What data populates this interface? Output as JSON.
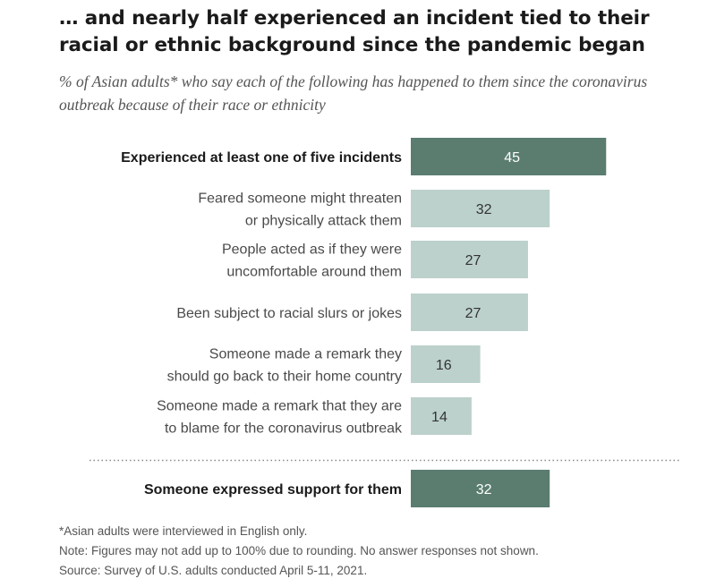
{
  "title": "… and nearly half experienced an incident tied to their racial or ethnic background since the pandemic began",
  "subtitle": "% of Asian adults* who say each of the following has happened to them since the coronavirus outbreak because of their race or ethnicity",
  "chart_data": {
    "type": "bar",
    "orientation": "horizontal",
    "categories": [
      [
        "Experienced at least one of five incidents"
      ],
      [
        "Feared someone might threaten",
        "or physically attack them"
      ],
      [
        "People acted as if they were",
        "uncomfortable around them"
      ],
      [
        "Been subject to racial slurs or jokes"
      ],
      [
        "Someone made a remark they",
        "should go back to their home country"
      ],
      [
        "Someone made a remark that they are",
        "to blame for the coronavirus outbreak"
      ],
      [
        "Someone expressed support for them"
      ]
    ],
    "values": [
      45,
      32,
      27,
      27,
      16,
      14,
      32
    ],
    "highlight": [
      true,
      false,
      false,
      false,
      false,
      false,
      true
    ],
    "separator_before_index": 6,
    "xlim": [
      0,
      100
    ],
    "colors": {
      "highlight": "#5a7d70",
      "normal": "#bcd1cc",
      "highlight_label": "#ffffff",
      "normal_label": "#333333"
    }
  },
  "footnotes": [
    "*Asian adults were interviewed in English only.",
    "Note: Figures may not add up to 100% due to rounding. No answer responses not shown.",
    "Source: Survey of U.S. adults conducted April 5-11, 2021."
  ]
}
